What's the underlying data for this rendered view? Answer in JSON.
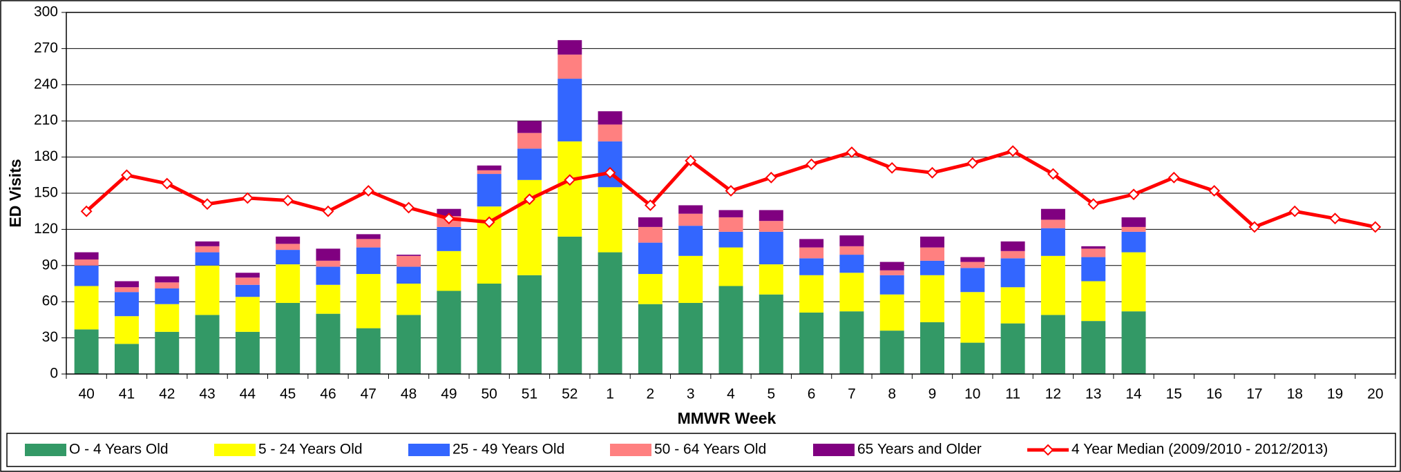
{
  "chart_data": {
    "type": "bar",
    "stacked": true,
    "x_label": "MMWR Week",
    "y_label": "ED Visits",
    "categories": [
      "40",
      "41",
      "42",
      "43",
      "44",
      "45",
      "46",
      "47",
      "48",
      "49",
      "50",
      "51",
      "52",
      "1",
      "2",
      "3",
      "4",
      "5",
      "6",
      "7",
      "8",
      "9",
      "10",
      "11",
      "12",
      "13",
      "14",
      "15",
      "16",
      "17",
      "18",
      "19",
      "20"
    ],
    "ylim": [
      0,
      300
    ],
    "yticks": [
      0,
      30,
      60,
      90,
      120,
      150,
      180,
      210,
      240,
      270,
      300
    ],
    "grid": true,
    "legend": "bottom",
    "series": [
      {
        "name": "O - 4 Years Old",
        "color": "#339966",
        "type": "bar",
        "values": [
          37,
          25,
          35,
          49,
          35,
          59,
          50,
          38,
          49,
          69,
          75,
          82,
          114,
          101,
          58,
          59,
          73,
          66,
          51,
          52,
          36,
          43,
          26,
          42,
          49,
          44,
          52,
          null,
          null,
          null,
          null,
          null,
          null
        ]
      },
      {
        "name": "5 - 24 Years Old",
        "color": "#ffff00",
        "type": "bar",
        "values": [
          36,
          23,
          23,
          41,
          29,
          32,
          24,
          45,
          26,
          33,
          64,
          79,
          79,
          54,
          25,
          39,
          32,
          25,
          31,
          32,
          30,
          39,
          42,
          30,
          49,
          33,
          49,
          null,
          null,
          null,
          null,
          null,
          null
        ]
      },
      {
        "name": "25 - 49 Years Old",
        "color": "#3366ff",
        "type": "bar",
        "values": [
          17,
          20,
          13,
          11,
          10,
          12,
          15,
          22,
          14,
          20,
          27,
          26,
          52,
          38,
          26,
          25,
          13,
          27,
          14,
          15,
          16,
          12,
          20,
          24,
          23,
          20,
          17,
          null,
          null,
          null,
          null,
          null,
          null
        ]
      },
      {
        "name": "50 - 64 Years Old",
        "color": "#ff8080",
        "type": "bar",
        "values": [
          5,
          4,
          5,
          5,
          6,
          5,
          5,
          7,
          9,
          9,
          3,
          13,
          20,
          14,
          13,
          10,
          12,
          9,
          9,
          7,
          4,
          11,
          5,
          6,
          7,
          7,
          4,
          null,
          null,
          null,
          null,
          null,
          null
        ]
      },
      {
        "name": "65 Years and Older",
        "color": "#800080",
        "type": "bar",
        "values": [
          6,
          5,
          5,
          4,
          4,
          6,
          10,
          4,
          1,
          6,
          4,
          10,
          12,
          11,
          8,
          7,
          6,
          9,
          7,
          9,
          7,
          9,
          4,
          8,
          9,
          2,
          8,
          null,
          null,
          null,
          null,
          null,
          null
        ]
      },
      {
        "name": "4 Year Median (2009/2010 - 2012/2013)",
        "color": "#ff0000",
        "type": "line",
        "values": [
          135,
          165,
          158,
          141,
          146,
          144,
          135,
          152,
          138,
          129,
          126,
          145,
          161,
          167,
          140,
          177,
          152,
          163,
          174,
          184,
          171,
          167,
          175,
          185,
          166,
          141,
          149,
          163,
          152,
          122,
          135,
          129,
          122
        ]
      }
    ]
  }
}
